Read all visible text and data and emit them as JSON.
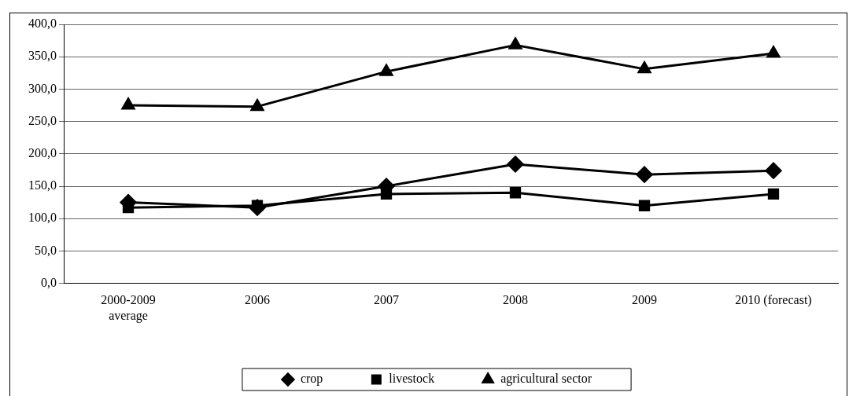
{
  "chart_data": {
    "type": "line",
    "categories": [
      "2000-2009 average",
      "2006",
      "2007",
      "2008",
      "2009",
      "2010 (forecast)"
    ],
    "series": [
      {
        "name": "crop",
        "color": "#000000",
        "marker": "diamond",
        "values": [
          125,
          117,
          150,
          184,
          168,
          174
        ]
      },
      {
        "name": "livestock",
        "color": "#000000",
        "marker": "square",
        "values": [
          117,
          120,
          138,
          140,
          120,
          138
        ]
      },
      {
        "name": "agricultural sector",
        "color": "#000000",
        "marker": "triangle",
        "values": [
          275,
          273,
          327,
          368,
          331,
          355
        ]
      }
    ],
    "ylim": [
      0,
      400
    ],
    "yticks": [
      {
        "value": 0,
        "label": "0,0"
      },
      {
        "value": 50,
        "label": "50,0"
      },
      {
        "value": 100,
        "label": "100,0"
      },
      {
        "value": 150,
        "label": "150,0"
      },
      {
        "value": 200,
        "label": "200,0"
      },
      {
        "value": 250,
        "label": "250,0"
      },
      {
        "value": 300,
        "label": "300,0"
      },
      {
        "value": 350,
        "label": "350,0"
      },
      {
        "value": 400,
        "label": "400,0"
      }
    ],
    "grid": "y",
    "legend": "bottom",
    "line_style": "solid"
  }
}
